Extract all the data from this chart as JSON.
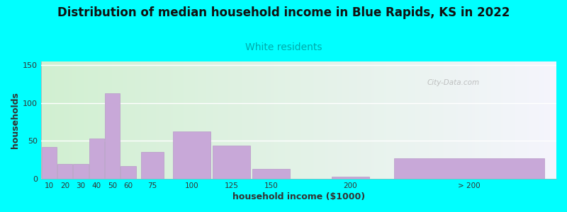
{
  "title": "Distribution of median household income in Blue Rapids, KS in 2022",
  "subtitle": "White residents",
  "xlabel": "household income ($1000)",
  "ylabel": "households",
  "title_fontsize": 12,
  "subtitle_fontsize": 10,
  "subtitle_color": "#00aaaa",
  "bar_color": "#c8a8d8",
  "bar_edgecolor": "#b898c8",
  "background_color": "#00ffff",
  "ylim": [
    0,
    155
  ],
  "yticks": [
    0,
    50,
    100,
    150
  ],
  "watermark": "City-Data.com",
  "categories": [
    "10",
    "20",
    "30",
    "40",
    "50",
    "60",
    "75",
    "100",
    "125",
    "150",
    "200",
    "> 200"
  ],
  "bar_centers": [
    10,
    20,
    30,
    40,
    50,
    60,
    75,
    100,
    125,
    150,
    200,
    275
  ],
  "bar_widths": [
    10,
    10,
    10,
    10,
    10,
    10,
    15,
    25,
    25,
    25,
    25,
    100
  ],
  "values": [
    42,
    20,
    20,
    53,
    113,
    17,
    35,
    63,
    44,
    13,
    3,
    27
  ],
  "xtick_positions": [
    10,
    20,
    30,
    40,
    50,
    60,
    75,
    100,
    125,
    150,
    200,
    275
  ],
  "xtick_labels": [
    "10",
    "20",
    "30",
    "40",
    "50",
    "60",
    "75",
    "100",
    "125",
    "150",
    "200",
    "> 200"
  ],
  "xlim": [
    5,
    330
  ]
}
